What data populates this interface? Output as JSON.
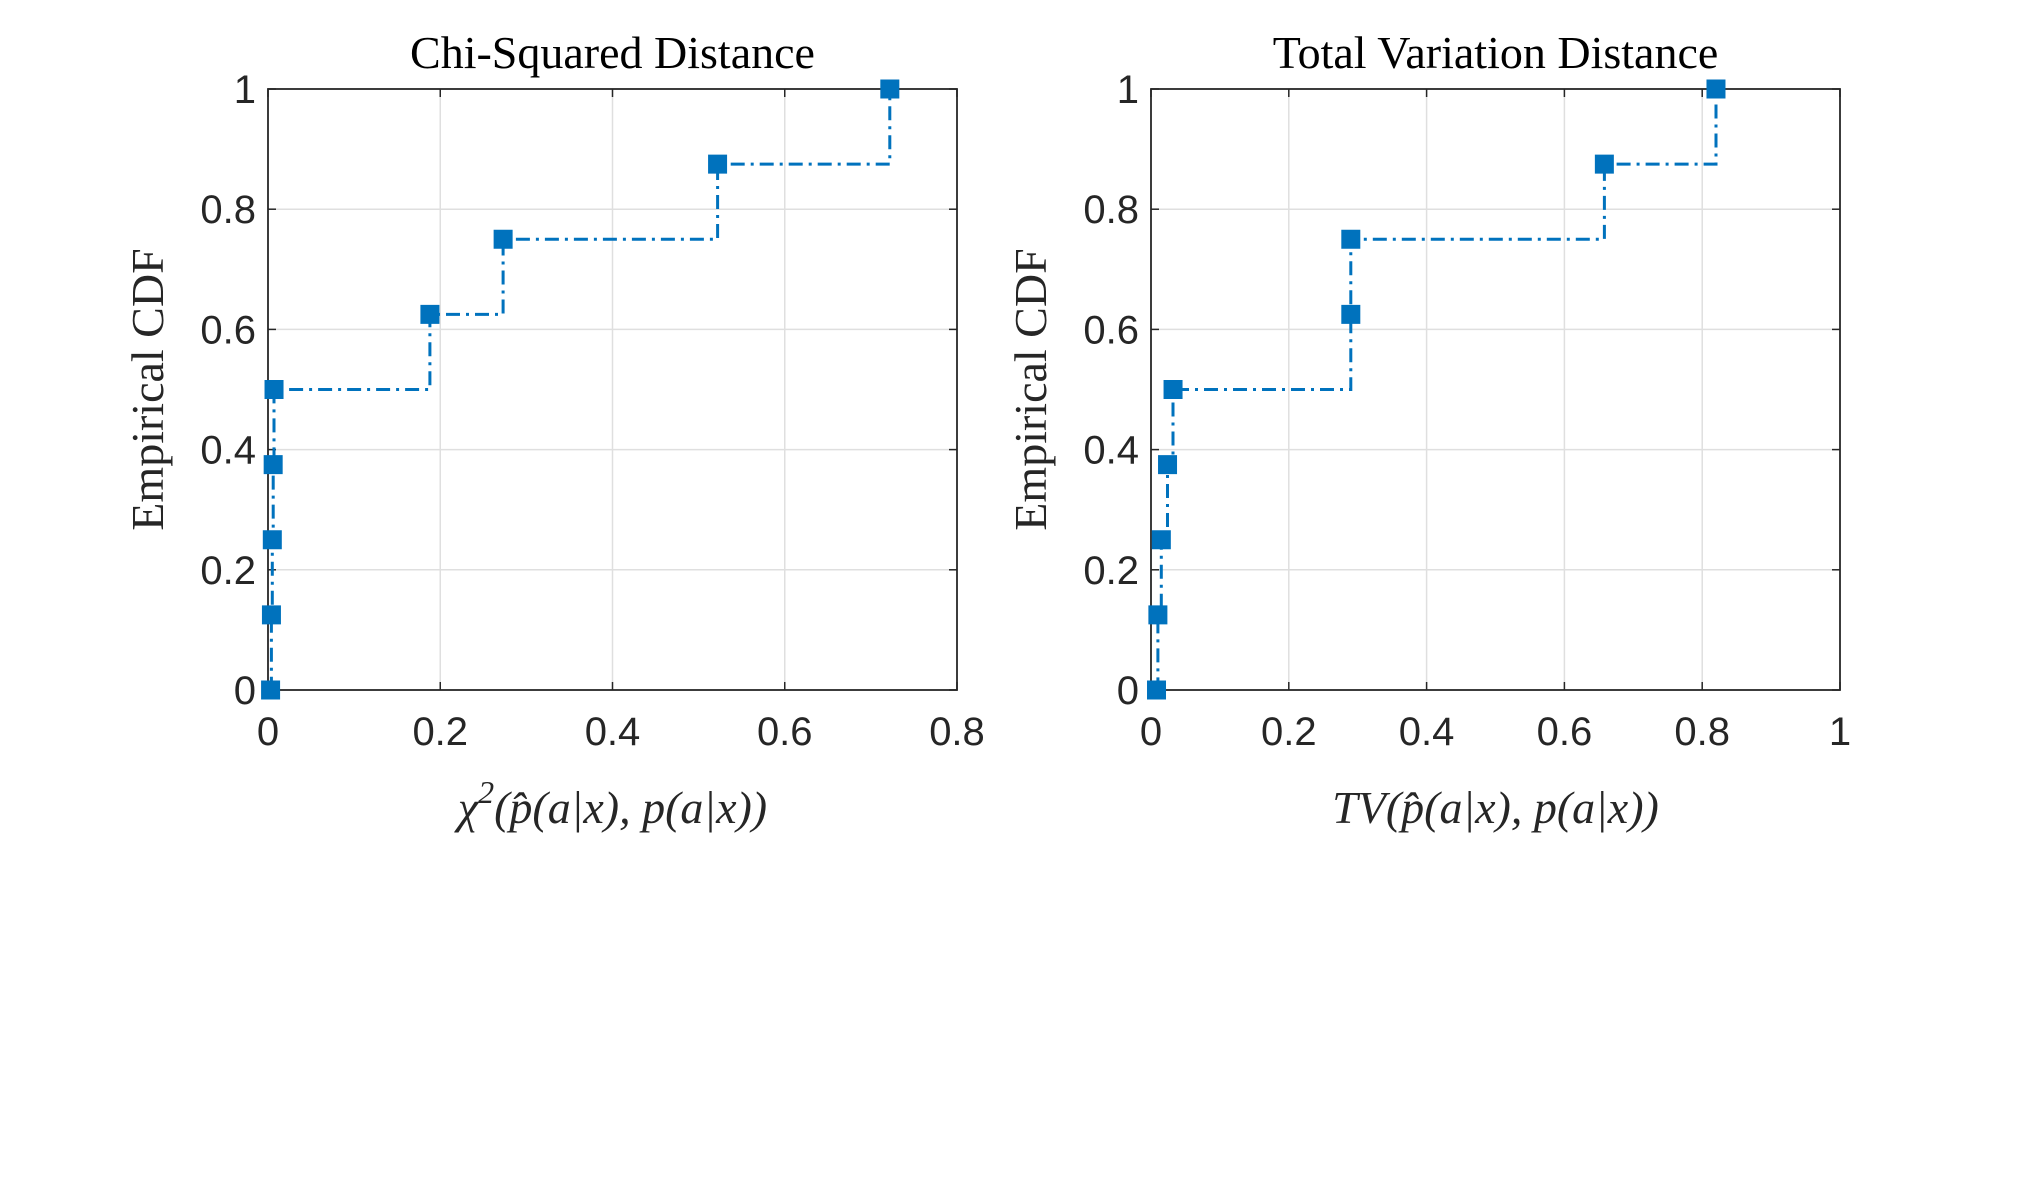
{
  "chart_data": [
    {
      "type": "line",
      "title": "Chi-Squared Distance",
      "ylabel": "Empirical CDF",
      "xlabel_parts": [
        "χ",
        "2",
        "(p̂(a|x), p(a|x))"
      ],
      "xlim": [
        0,
        0.8
      ],
      "ylim": [
        0,
        1
      ],
      "xticks": [
        0,
        0.2,
        0.4,
        0.6,
        0.8
      ],
      "xtick_labels": [
        "0",
        "0.2",
        "0.4",
        "0.6",
        "0.8"
      ],
      "yticks": [
        0,
        0.2,
        0.4,
        0.6,
        0.8,
        1
      ],
      "ytick_labels": [
        "0",
        "0.2",
        "0.4",
        "0.6",
        "0.8",
        "1"
      ],
      "grid": true,
      "series": [
        {
          "style": "stairs, dash-dot, square markers",
          "color": "#0072BD",
          "x": [
            0.003,
            0.004,
            0.005,
            0.006,
            0.007,
            0.188,
            0.273,
            0.522,
            0.722
          ],
          "y": [
            0,
            0.125,
            0.25,
            0.375,
            0.5,
            0.625,
            0.75,
            0.875,
            1.0
          ]
        }
      ]
    },
    {
      "type": "line",
      "title": "Total Variation Distance",
      "ylabel": "Empirical CDF",
      "xlabel_parts": [
        "TV",
        "",
        "(p̂(a|x), p(a|x))"
      ],
      "xlim": [
        0,
        1
      ],
      "ylim": [
        0,
        1
      ],
      "xticks": [
        0,
        0.2,
        0.4,
        0.6,
        0.8,
        1
      ],
      "xtick_labels": [
        "0",
        "0.2",
        "0.4",
        "0.6",
        "0.8",
        "1"
      ],
      "yticks": [
        0,
        0.2,
        0.4,
        0.6,
        0.8,
        1
      ],
      "ytick_labels": [
        "0",
        "0.2",
        "0.4",
        "0.6",
        "0.8",
        "1"
      ],
      "grid": true,
      "series": [
        {
          "style": "stairs, dash-dot, square markers",
          "color": "#0072BD",
          "x": [
            0.008,
            0.01,
            0.015,
            0.024,
            0.032,
            0.29,
            0.29,
            0.658,
            0.82
          ],
          "y": [
            0,
            0.125,
            0.25,
            0.375,
            0.5,
            0.625,
            0.75,
            0.875,
            1.0
          ]
        }
      ]
    }
  ]
}
